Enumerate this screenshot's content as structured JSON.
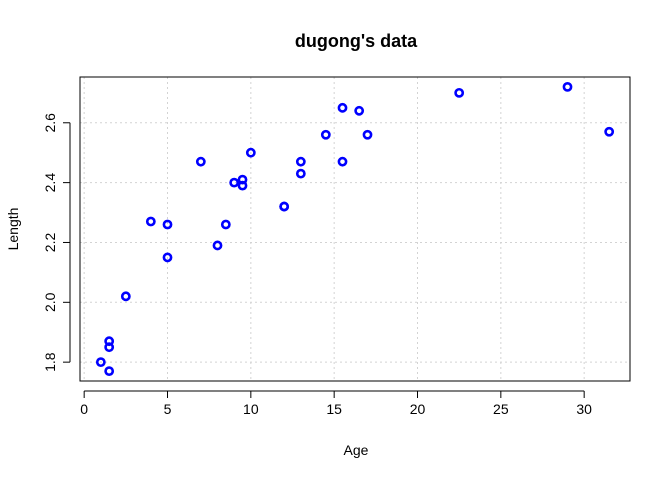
{
  "chart_data": {
    "type": "scatter",
    "title": "dugong's data",
    "xlabel": "Age",
    "ylabel": "Length",
    "xlim": [
      -0.25,
      32.75
    ],
    "ylim": [
      1.737,
      2.753
    ],
    "xticks": [
      0,
      5,
      10,
      15,
      20,
      25,
      30
    ],
    "yticks": [
      1.8,
      2.0,
      2.2,
      2.4,
      2.6
    ],
    "ytick_labels": [
      "1.8",
      "2.0",
      "2.2",
      "2.4",
      "2.6"
    ],
    "grid": true,
    "point_color": "#0000ff",
    "grid_color": "#d3d3d3",
    "series": [
      {
        "x": [
          1.0,
          1.5,
          1.5,
          1.5,
          2.5,
          4.0,
          5.0,
          5.0,
          7.0,
          8.0,
          8.5,
          9.0,
          9.5,
          9.5,
          10.0,
          12.0,
          12.0,
          13.0,
          13.0,
          14.5,
          15.5,
          15.5,
          16.5,
          17.0,
          22.5,
          29.0,
          31.5
        ],
        "y": [
          1.8,
          1.85,
          1.87,
          1.77,
          2.02,
          2.27,
          2.15,
          2.26,
          2.47,
          2.19,
          2.26,
          2.4,
          2.39,
          2.41,
          2.5,
          2.32,
          2.32,
          2.43,
          2.47,
          2.56,
          2.65,
          2.47,
          2.64,
          2.56,
          2.7,
          2.72,
          2.57
        ]
      }
    ]
  }
}
